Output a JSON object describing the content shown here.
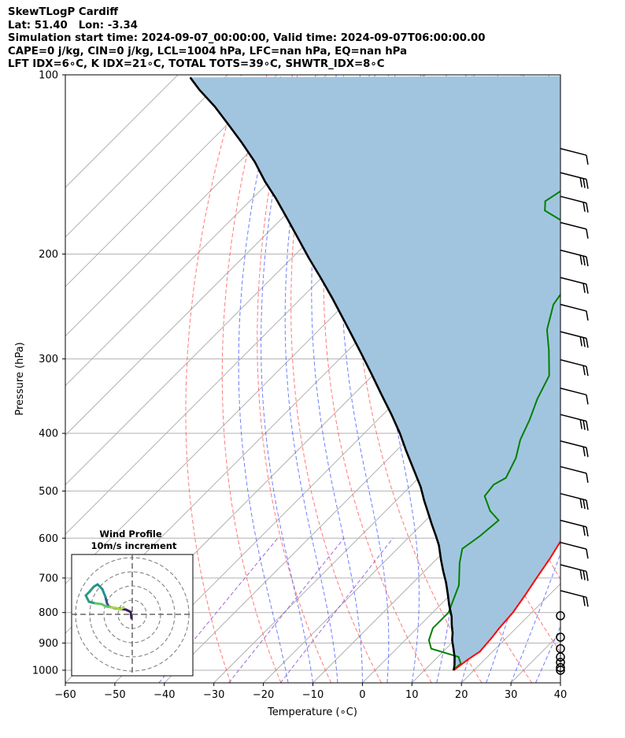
{
  "header": {
    "line1": "SkewTLogP Cardiff",
    "line2": "Lat: 51.40   Lon: -3.34",
    "line3": "Simulation start time: 2024-09-07_00:00:00, Valid time: 2024-09-07T06:00:00.00",
    "line4": "CAPE=0 j/kg, CIN=0 j/kg, LCL=1004 hPa, LFC=nan hPa, EQ=nan hPa",
    "line5": "LFT IDX=6∘C, K IDX=21∘C, TOTAL TOTS=39∘C, SHWTR_IDX=8∘C"
  },
  "chart_data": {
    "type": "line",
    "title": "SkewTLogP Cardiff",
    "xlabel": "Temperature (∘C)",
    "ylabel": "Pressure (hPa)",
    "xlim": [
      -60,
      40
    ],
    "ylim": [
      1050,
      100
    ],
    "x_ticks": [
      "−60",
      "−50",
      "−40",
      "−30",
      "−20",
      "−10",
      "0",
      "10",
      "20",
      "30",
      "40"
    ],
    "y_ticks": [
      "100",
      "200",
      "300",
      "400",
      "500",
      "600",
      "700",
      "800",
      "900",
      "1000"
    ],
    "y_scale": "log",
    "skew": "temperature isotherms skewed 45 degrees",
    "grid": true,
    "colors": {
      "temperature": "#ff0000",
      "dewpoint": "#008000",
      "parcel": "#000000",
      "shade": "#a2c5df",
      "dry_adiabat": "#ff6060",
      "moist_adiabat": "#4a5cff",
      "mixing_ratio": "#8844cc"
    },
    "series": [
      {
        "name": "temperature",
        "points": [
          [
            15.9,
            1000
          ],
          [
            16.6,
            960
          ],
          [
            17.4,
            930
          ],
          [
            17.0,
            880
          ],
          [
            16.6,
            850
          ],
          [
            16.2,
            800
          ],
          [
            15.2,
            750
          ],
          [
            14.0,
            700
          ],
          [
            12.8,
            650
          ],
          [
            11.2,
            600
          ],
          [
            9.2,
            550
          ],
          [
            7.4,
            520
          ],
          [
            6.5,
            500
          ],
          [
            4.8,
            470
          ],
          [
            2.5,
            440
          ],
          [
            0.2,
            410
          ],
          [
            -2.4,
            380
          ],
          [
            -5.7,
            350
          ],
          [
            -8.0,
            320
          ],
          [
            -11.6,
            290
          ],
          [
            -14.5,
            265
          ],
          [
            -16.9,
            243
          ],
          [
            -17.6,
            232
          ],
          [
            -12.7,
            220
          ],
          [
            -9.7,
            200
          ],
          [
            -9.5,
            192
          ],
          [
            -9.6,
            185
          ],
          [
            -9.3,
            170
          ],
          [
            -9.3,
            158
          ],
          [
            -11.6,
            145
          ],
          [
            -14.3,
            135
          ],
          [
            -17.0,
            128
          ],
          [
            -19.4,
            115
          ],
          [
            -22.5,
            106
          ],
          [
            -24.7,
            100
          ]
        ]
      },
      {
        "name": "dewpoint",
        "points": [
          [
            15.7,
            1000
          ],
          [
            16.0,
            975
          ],
          [
            14.2,
            950
          ],
          [
            7.0,
            920
          ],
          [
            4.8,
            890
          ],
          [
            3.2,
            850
          ],
          [
            3.2,
            800
          ],
          [
            -0.2,
            720
          ],
          [
            -4.6,
            660
          ],
          [
            -6.9,
            625
          ],
          [
            -5.9,
            595
          ],
          [
            -5.3,
            560
          ],
          [
            -8.9,
            540
          ],
          [
            -13.0,
            510
          ],
          [
            -13.5,
            488
          ],
          [
            -12.4,
            475
          ],
          [
            -14.4,
            440
          ],
          [
            -17.2,
            410
          ],
          [
            -19.3,
            380
          ],
          [
            -22.0,
            350
          ],
          [
            -24.3,
            320
          ],
          [
            -29.5,
            290
          ],
          [
            -34.0,
            268
          ],
          [
            -37.8,
            243
          ],
          [
            -38.5,
            232
          ],
          [
            -37.4,
            218
          ],
          [
            -38.7,
            202
          ],
          [
            -46.0,
            185
          ],
          [
            -58.5,
            169
          ],
          [
            -60.3,
            163
          ],
          [
            -58.0,
            150
          ],
          [
            -57.3,
            140
          ],
          [
            -54.6,
            130
          ],
          [
            -51.3,
            121
          ],
          [
            -48.2,
            113
          ],
          [
            -45.2,
            106
          ],
          [
            -42.1,
            100
          ]
        ]
      },
      {
        "name": "parcel",
        "points": [
          [
            15.9,
            1000
          ],
          [
            15.0,
            980
          ],
          [
            13.4,
            950
          ],
          [
            11.5,
            920
          ],
          [
            9.5,
            890
          ],
          [
            8.1,
            865
          ],
          [
            6.4,
            840
          ],
          [
            4.6,
            812
          ],
          [
            1.8,
            777
          ],
          [
            -0.9,
            742
          ],
          [
            -3.4,
            712
          ],
          [
            -6.2,
            682
          ],
          [
            -9.0,
            652
          ],
          [
            -12.3,
            617
          ],
          [
            -14.8,
            595
          ],
          [
            -18.2,
            567
          ],
          [
            -21.3,
            542
          ],
          [
            -24.3,
            519
          ],
          [
            -27.8,
            492
          ],
          [
            -32.4,
            462
          ],
          [
            -38.0,
            428
          ],
          [
            -42.8,
            400
          ],
          [
            -48.5,
            371
          ],
          [
            -54.2,
            345
          ],
          [
            -60.5,
            318
          ],
          [
            -67.2,
            292
          ],
          [
            -73.4,
            270
          ],
          [
            -78.9,
            252
          ],
          [
            -83.8,
            237
          ],
          [
            -89.9,
            220
          ],
          [
            -96.6,
            203
          ],
          [
            -102.8,
            188
          ],
          [
            -108.6,
            175
          ],
          [
            -115.4,
            161
          ],
          [
            -120.9,
            151
          ],
          [
            -126.9,
            140
          ],
          [
            -133.4,
            130
          ],
          [
            -139.9,
            121
          ],
          [
            -146.2,
            113
          ],
          [
            -152.6,
            106
          ],
          [
            -157.0,
            101
          ]
        ]
      }
    ],
    "wind_barbs": {
      "levels_hpa": [
        1000,
        990,
        970,
        950,
        920,
        880,
        810,
        735,
        665,
        610,
        560,
        505,
        455,
        412,
        372,
        336,
        301,
        270,
        243,
        219,
        197,
        177,
        160,
        146,
        133
      ],
      "calm_levels_hpa": [
        1000,
        990,
        970,
        950,
        920,
        880,
        810
      ]
    },
    "inset": {
      "title_line1": "Wind Profile",
      "title_line2": "10m/s increment",
      "hodograph_colormap": [
        "#3b1e5a",
        "#3b528b",
        "#21918c",
        "#2a9b7e",
        "#5ec962",
        "#a7d84a"
      ]
    }
  }
}
